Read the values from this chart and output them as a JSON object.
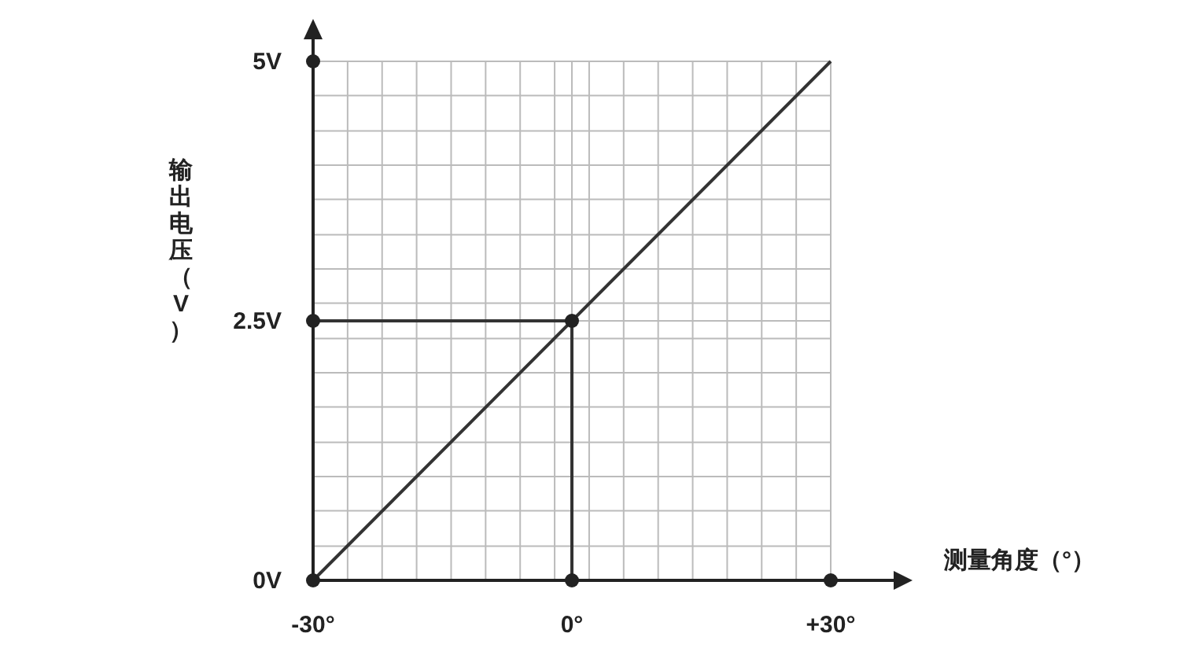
{
  "chart_data": {
    "type": "line",
    "xlabel": "测量角度（°）",
    "ylabel": "输出电压（V）",
    "xlim": [
      -30,
      30
    ],
    "ylim": [
      0,
      5
    ],
    "xticks": [
      {
        "value": -30,
        "label": "-30°"
      },
      {
        "value": -26,
        "label": null
      },
      {
        "value": -22,
        "label": null
      },
      {
        "value": -18,
        "label": null
      },
      {
        "value": -14,
        "label": null
      },
      {
        "value": -10,
        "label": null
      },
      {
        "value": -6,
        "label": null
      },
      {
        "value": -2,
        "label": null
      },
      {
        "value": 0,
        "label": "0°"
      },
      {
        "value": 2,
        "label": null
      },
      {
        "value": 6,
        "label": null
      },
      {
        "value": 10,
        "label": null
      },
      {
        "value": 14,
        "label": null
      },
      {
        "value": 18,
        "label": null
      },
      {
        "value": 22,
        "label": null
      },
      {
        "value": 26,
        "label": null
      },
      {
        "value": 30,
        "label": "+30°"
      }
    ],
    "yticks": [
      {
        "value": 0,
        "label": "0V"
      },
      {
        "value": 0.33,
        "label": null
      },
      {
        "value": 0.67,
        "label": null
      },
      {
        "value": 1,
        "label": null
      },
      {
        "value": 1.33,
        "label": null
      },
      {
        "value": 1.67,
        "label": null
      },
      {
        "value": 2,
        "label": null
      },
      {
        "value": 2.33,
        "label": null
      },
      {
        "value": 2.5,
        "label": "2.5V"
      },
      {
        "value": 2.67,
        "label": null
      },
      {
        "value": 3,
        "label": null
      },
      {
        "value": 3.33,
        "label": null
      },
      {
        "value": 3.67,
        "label": null
      },
      {
        "value": 4,
        "label": null
      },
      {
        "value": 4.33,
        "label": null
      },
      {
        "value": 4.67,
        "label": null
      },
      {
        "value": 5,
        "label": "5V"
      }
    ],
    "grid": true,
    "series": [
      {
        "color": "#333333",
        "x": [
          -30,
          30
        ],
        "values": [
          0,
          5
        ]
      },
      {
        "color": "#333333",
        "x": [
          -30,
          0,
          0
        ],
        "values": [
          2.5,
          2.5,
          0
        ]
      },
      {
        "type": "scatter",
        "color": "#222222",
        "x": [
          -30,
          -30,
          -30,
          0,
          30,
          0
        ],
        "values": [
          5,
          2.5,
          0,
          0,
          0,
          2.5
        ],
        "marker": "circle"
      }
    ]
  }
}
